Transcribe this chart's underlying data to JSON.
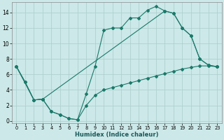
{
  "xlabel": "Humidex (Indice chaleur)",
  "bg_color": "#cce8e8",
  "grid_color": "#aacccc",
  "line_color": "#1a7a6a",
  "xlim": [
    -0.5,
    23.5
  ],
  "ylim": [
    -0.3,
    15.3
  ],
  "xticks": [
    0,
    1,
    2,
    3,
    4,
    5,
    6,
    7,
    8,
    9,
    10,
    11,
    12,
    13,
    14,
    15,
    16,
    17,
    18,
    19,
    20,
    21,
    22,
    23
  ],
  "yticks": [
    0,
    2,
    4,
    6,
    8,
    10,
    12,
    14
  ],
  "line1_x": [
    0,
    1,
    2,
    3,
    4,
    5,
    6,
    7,
    8,
    9,
    10,
    11,
    12,
    13,
    14,
    15,
    16,
    17,
    18,
    19,
    20,
    21,
    22,
    23
  ],
  "line1_y": [
    7.0,
    5.0,
    2.7,
    2.8,
    1.2,
    0.8,
    0.3,
    0.15,
    3.5,
    7.0,
    11.7,
    12.0,
    12.0,
    13.3,
    13.3,
    14.3,
    14.8,
    14.2,
    13.9,
    12.0,
    11.0,
    8.0,
    7.2,
    7.0
  ],
  "line2_x": [
    0,
    2,
    3,
    4,
    5,
    6,
    7,
    8,
    9,
    10,
    11,
    12,
    13,
    14,
    15,
    16,
    17,
    18,
    19,
    20,
    21,
    22,
    23
  ],
  "line2_y": [
    7.0,
    2.7,
    2.8,
    1.2,
    0.8,
    0.3,
    0.15,
    2.0,
    3.3,
    4.0,
    4.3,
    4.6,
    4.9,
    5.2,
    5.5,
    5.8,
    6.1,
    6.4,
    6.7,
    6.9,
    7.1,
    7.1,
    7.0
  ],
  "line3_x": [
    0,
    1,
    2,
    3,
    17,
    18,
    19,
    20,
    21,
    22,
    23
  ],
  "line3_y": [
    7.0,
    5.0,
    2.7,
    2.8,
    14.2,
    13.9,
    12.0,
    11.0,
    8.0,
    7.2,
    7.0
  ]
}
